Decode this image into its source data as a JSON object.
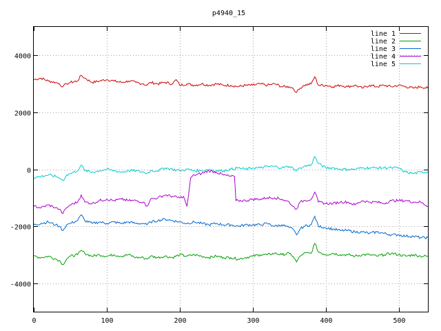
{
  "chart_data": {
    "type": "line",
    "title": "p4940_15",
    "xlabel": "",
    "ylabel": "",
    "xlim": [
      0,
      540
    ],
    "ylim": [
      -5000,
      5000
    ],
    "xticks": [
      0,
      100,
      200,
      300,
      400,
      500
    ],
    "yticks": [
      -4000,
      -2000,
      0,
      2000,
      4000
    ],
    "grid": true,
    "legend_position": "top-right",
    "series": [
      {
        "name": "line 1",
        "color": "#cc0000",
        "x": [
          0,
          10,
          20,
          30,
          35,
          40,
          45,
          50,
          60,
          65,
          70,
          80,
          90,
          100,
          110,
          120,
          130,
          140,
          150,
          155,
          160,
          170,
          180,
          190,
          195,
          200,
          210,
          220,
          230,
          240,
          250,
          260,
          270,
          280,
          290,
          300,
          310,
          320,
          330,
          340,
          350,
          355,
          360,
          365,
          370,
          380,
          385,
          390,
          400,
          410,
          420,
          430,
          440,
          450,
          460,
          470,
          480,
          490,
          500,
          510,
          520,
          530,
          540
        ],
        "y": [
          3150,
          3200,
          3100,
          3050,
          3000,
          2900,
          3000,
          3050,
          3100,
          3300,
          3200,
          3050,
          3100,
          3150,
          3100,
          3050,
          3100,
          3050,
          3000,
          2950,
          3050,
          3000,
          3050,
          3000,
          3150,
          2950,
          3000,
          2950,
          3000,
          2950,
          3000,
          2950,
          2950,
          2900,
          2950,
          2950,
          3000,
          2950,
          3000,
          2900,
          2900,
          2850,
          2700,
          2850,
          2950,
          3000,
          3250,
          2950,
          2950,
          2900,
          2950,
          2900,
          2950,
          2850,
          2950,
          2900,
          2950,
          2900,
          2950,
          2900,
          2850,
          2900,
          2850
        ]
      },
      {
        "name": "line 2",
        "color": "#00a000",
        "x": [
          0,
          10,
          20,
          30,
          35,
          40,
          45,
          50,
          60,
          65,
          70,
          80,
          90,
          100,
          110,
          120,
          130,
          140,
          150,
          155,
          160,
          170,
          180,
          190,
          200,
          210,
          220,
          230,
          240,
          250,
          260,
          270,
          280,
          290,
          300,
          310,
          320,
          330,
          340,
          350,
          355,
          360,
          365,
          370,
          380,
          385,
          390,
          400,
          410,
          420,
          430,
          440,
          450,
          460,
          470,
          480,
          490,
          500,
          510,
          520,
          530,
          540
        ],
        "y": [
          -3050,
          -3100,
          -3050,
          -3150,
          -3200,
          -3350,
          -3150,
          -3050,
          -3000,
          -2850,
          -2950,
          -3050,
          -3000,
          -3050,
          -3000,
          -3050,
          -3000,
          -3100,
          -3100,
          -3150,
          -3050,
          -3100,
          -3050,
          -3100,
          -3000,
          -3050,
          -3000,
          -3050,
          -3100,
          -3050,
          -3100,
          -3100,
          -3150,
          -3100,
          -3050,
          -3000,
          -3000,
          -2950,
          -3000,
          -2950,
          -3050,
          -3250,
          -3050,
          -2950,
          -2950,
          -2600,
          -2900,
          -3000,
          -2950,
          -3000,
          -3000,
          -3050,
          -3000,
          -3000,
          -3050,
          -3000,
          -2950,
          -3000,
          -3050,
          -3000,
          -3050,
          -3050
        ]
      },
      {
        "name": "line 3",
        "color": "#0066cc",
        "x": [
          0,
          10,
          20,
          30,
          35,
          40,
          45,
          50,
          60,
          65,
          70,
          80,
          90,
          100,
          110,
          120,
          130,
          140,
          150,
          155,
          160,
          170,
          180,
          190,
          200,
          210,
          220,
          230,
          240,
          250,
          260,
          270,
          280,
          290,
          300,
          310,
          320,
          330,
          340,
          350,
          355,
          360,
          365,
          370,
          380,
          385,
          390,
          400,
          410,
          420,
          430,
          440,
          450,
          460,
          470,
          480,
          490,
          500,
          510,
          520,
          530,
          540
        ],
        "y": [
          -1950,
          -1900,
          -1850,
          -1950,
          -2000,
          -2150,
          -1950,
          -1900,
          -1800,
          -1600,
          -1800,
          -1900,
          -1850,
          -1900,
          -1850,
          -1900,
          -1850,
          -1900,
          -1900,
          -1950,
          -1850,
          -1800,
          -1750,
          -1800,
          -1850,
          -1900,
          -1850,
          -1900,
          -1950,
          -1900,
          -1950,
          -1950,
          -2000,
          -1950,
          -1950,
          -1950,
          -1900,
          -2000,
          -1950,
          -2050,
          -2100,
          -2300,
          -2100,
          -2000,
          -1950,
          -1650,
          -2000,
          -2050,
          -2100,
          -2150,
          -2150,
          -2200,
          -2200,
          -2250,
          -2200,
          -2250,
          -2300,
          -2300,
          -2350,
          -2350,
          -2400,
          -2400
        ]
      },
      {
        "name": "line 4",
        "color": "#aa00cc",
        "x": [
          0,
          10,
          20,
          30,
          35,
          40,
          45,
          50,
          60,
          65,
          70,
          80,
          90,
          100,
          110,
          120,
          130,
          140,
          150,
          155,
          160,
          170,
          180,
          190,
          200,
          205,
          210,
          212,
          215,
          220,
          230,
          240,
          250,
          260,
          270,
          275,
          277,
          280,
          290,
          300,
          310,
          320,
          330,
          340,
          350,
          355,
          360,
          365,
          370,
          380,
          385,
          390,
          400,
          410,
          420,
          430,
          440,
          450,
          460,
          470,
          480,
          490,
          500,
          510,
          520,
          530,
          540
        ],
        "y": [
          -1300,
          -1350,
          -1250,
          -1350,
          -1400,
          -1550,
          -1350,
          -1250,
          -1150,
          -900,
          -1150,
          -1200,
          -1100,
          -1050,
          -1100,
          -1050,
          -1100,
          -1100,
          -1150,
          -1300,
          -1050,
          -1000,
          -900,
          -950,
          -1000,
          -950,
          -1300,
          -900,
          -300,
          -200,
          -150,
          -50,
          -100,
          -200,
          -250,
          -250,
          -1100,
          -1100,
          -1100,
          -1050,
          -1050,
          -1000,
          -1000,
          -1050,
          -1150,
          -1300,
          -1400,
          -1150,
          -1100,
          -1050,
          -800,
          -1150,
          -1200,
          -1200,
          -1150,
          -1150,
          -1250,
          -1100,
          -1150,
          -1150,
          -1200,
          -1100,
          -1100,
          -1100,
          -1150,
          -1150,
          -1300
        ]
      },
      {
        "name": "line 5",
        "color": "#00cccc",
        "x": [
          0,
          10,
          20,
          30,
          35,
          40,
          45,
          50,
          60,
          65,
          70,
          80,
          90,
          100,
          110,
          120,
          130,
          140,
          150,
          155,
          160,
          170,
          180,
          190,
          200,
          210,
          220,
          230,
          240,
          250,
          260,
          270,
          280,
          290,
          300,
          310,
          320,
          330,
          340,
          350,
          355,
          360,
          365,
          370,
          380,
          385,
          390,
          400,
          410,
          420,
          430,
          440,
          450,
          460,
          470,
          480,
          490,
          500,
          505,
          510,
          520,
          530,
          540
        ],
        "y": [
          -300,
          -250,
          -200,
          -250,
          -300,
          -400,
          -200,
          -150,
          -50,
          150,
          -50,
          -100,
          -50,
          0,
          -50,
          -100,
          -50,
          -50,
          -100,
          -150,
          -50,
          -50,
          50,
          0,
          -50,
          0,
          -50,
          -50,
          0,
          -50,
          -50,
          0,
          50,
          0,
          50,
          50,
          100,
          100,
          50,
          100,
          50,
          -50,
          50,
          100,
          150,
          450,
          200,
          50,
          50,
          0,
          0,
          0,
          50,
          50,
          50,
          50,
          50,
          50,
          -50,
          -100,
          -150,
          -100,
          -100
        ]
      }
    ]
  }
}
